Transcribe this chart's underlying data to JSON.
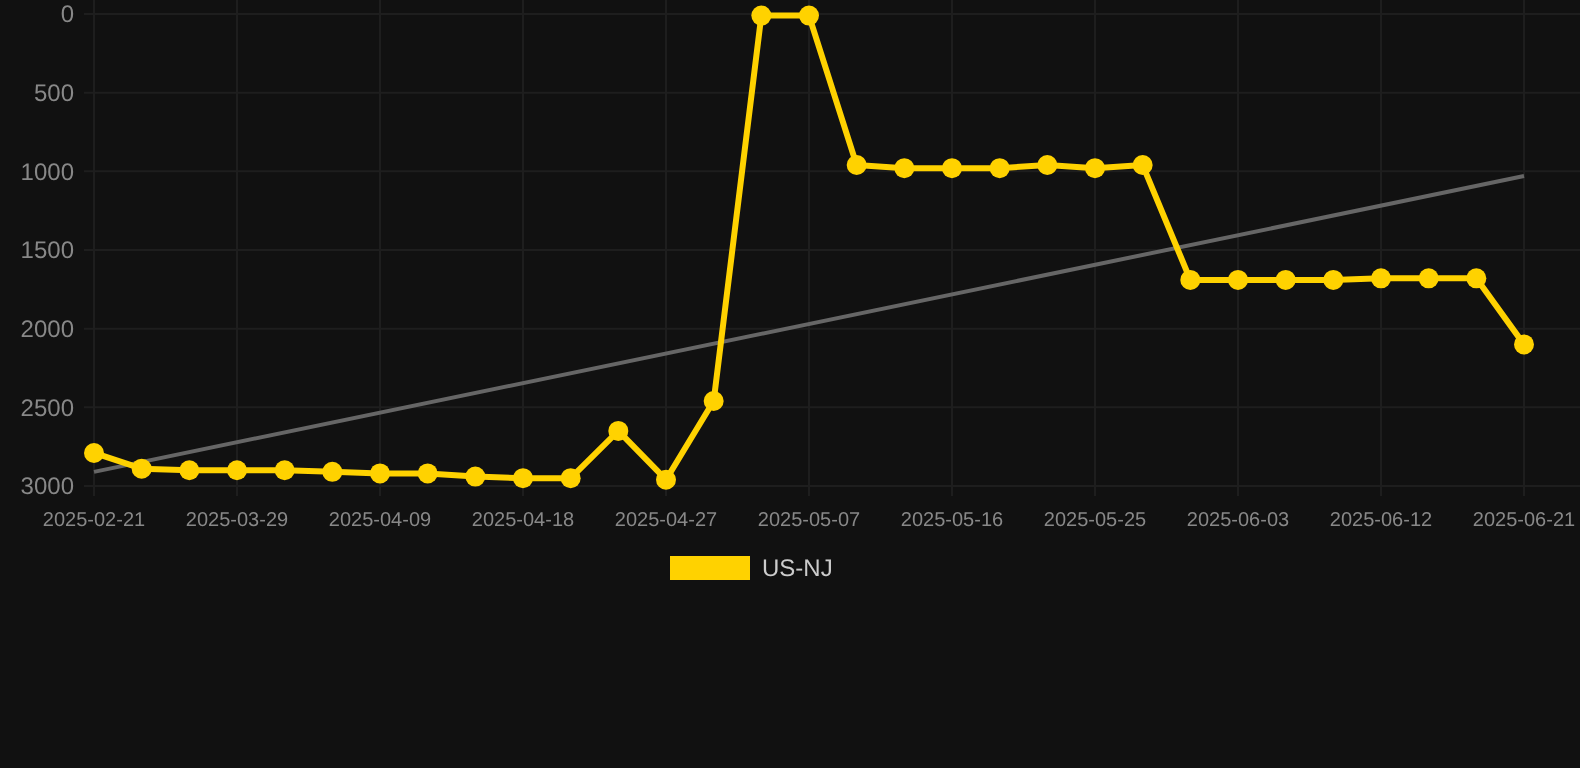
{
  "chart_data": {
    "type": "line",
    "categories": [
      "2025-02-21",
      null,
      null,
      "2025-03-29",
      null,
      null,
      "2025-04-09",
      null,
      null,
      "2025-04-18",
      null,
      null,
      "2025-04-27",
      null,
      null,
      "2025-05-07",
      null,
      null,
      "2025-05-16",
      null,
      null,
      "2025-05-25",
      null,
      null,
      "2025-06-03",
      null,
      null,
      "2025-06-12",
      null,
      null,
      "2025-06-21"
    ],
    "series": [
      {
        "name": "US-NJ",
        "color": "#ffd200",
        "marker": "circle",
        "values": [
          2790,
          2890,
          2900,
          2900,
          2900,
          2910,
          2920,
          2920,
          2940,
          2950,
          2950,
          2650,
          2960,
          2460,
          10,
          10,
          960,
          980,
          980,
          980,
          960,
          980,
          960,
          1690,
          1690,
          1690,
          1690,
          1680,
          1680,
          1680,
          2100
        ]
      },
      {
        "color": "#666666",
        "marker": "none",
        "values": [
          2910,
          null,
          null,
          null,
          null,
          null,
          null,
          null,
          null,
          null,
          null,
          null,
          null,
          null,
          null,
          null,
          null,
          null,
          null,
          null,
          null,
          null,
          null,
          null,
          null,
          null,
          null,
          null,
          null,
          null,
          1030
        ]
      }
    ],
    "ylim": [
      3000,
      0
    ],
    "yticks": [
      0,
      500,
      1000,
      1500,
      2000,
      2500,
      3000
    ],
    "grid": true,
    "legend": "bottom"
  }
}
